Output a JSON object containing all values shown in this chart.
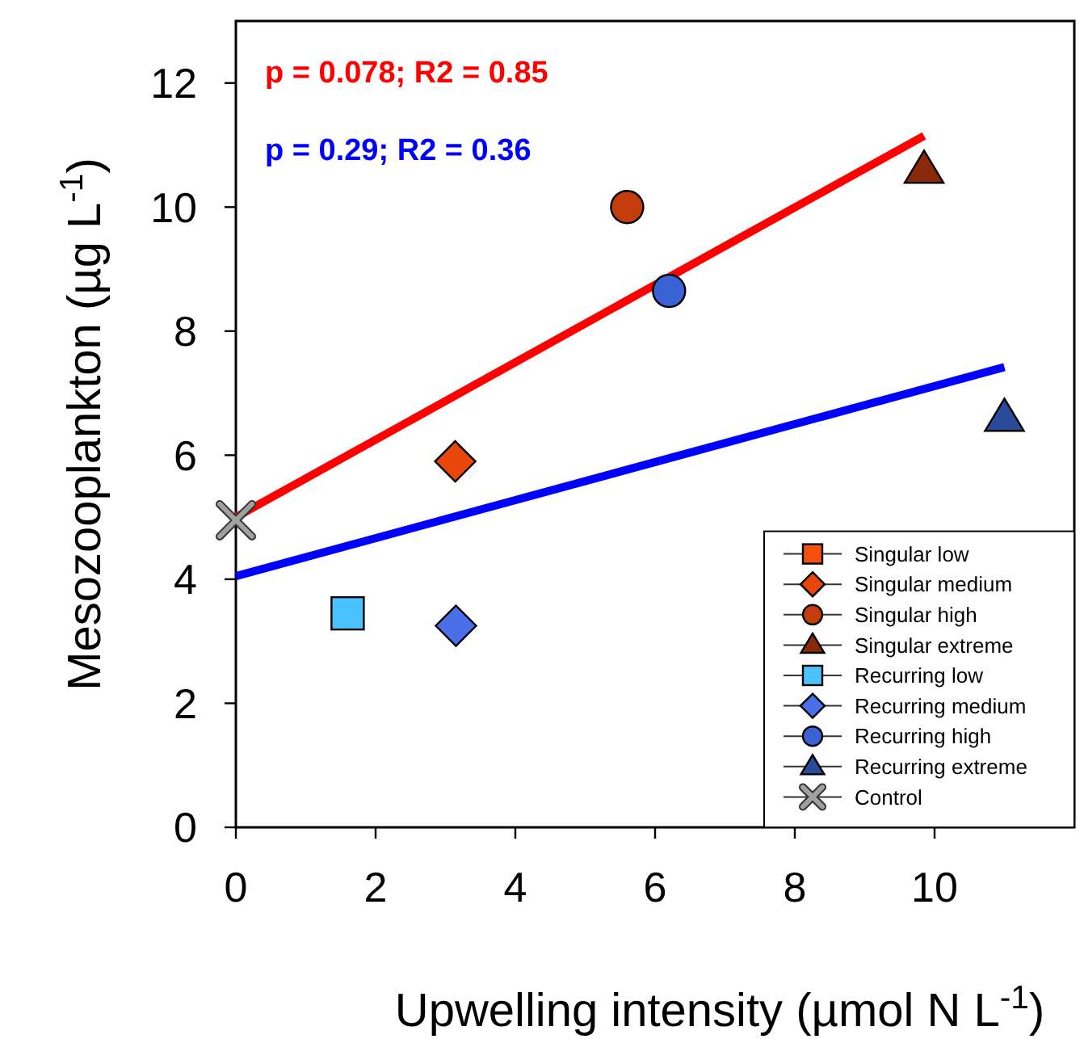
{
  "chart_data": {
    "type": "scatter",
    "xlabel": "Upwelling intensity (µmol N L$^{-1}$)",
    "ylabel": "Mesozooplankton (µg L$^{-1}$)",
    "xlim": [
      0,
      12
    ],
    "xticks": [
      0,
      2,
      4,
      6,
      8,
      10
    ],
    "ylim": [
      0,
      13
    ],
    "yticks": [
      0,
      2,
      4,
      6,
      8,
      10,
      12
    ],
    "grid": false,
    "legend": "bottom right",
    "annotations": [
      "p = 0.078; R2 = 0.85",
      "p = 0.29; R2 = 0.36"
    ],
    "series": [
      {
        "name": "Singular low",
        "color": "#f5500f",
        "marker": "square",
        "x": [
          null
        ],
        "values": [
          null
        ]
      },
      {
        "name": "Singular medium",
        "color": "#e8460a",
        "marker": "diamond",
        "x": [
          3.14
        ],
        "values": [
          5.9
        ]
      },
      {
        "name": "Singular high",
        "color": "#c43c0c",
        "marker": "circle",
        "x": [
          5.6
        ],
        "values": [
          10.0
        ]
      },
      {
        "name": "Singular extreme",
        "color": "#8b2a0a",
        "marker": "triangle",
        "x": [
          9.85
        ],
        "values": [
          10.6
        ]
      },
      {
        "name": "Recurring low",
        "color": "#4cc3ff",
        "marker": "square",
        "x": [
          1.6
        ],
        "values": [
          3.45
        ]
      },
      {
        "name": "Recurring medium",
        "color": "#4a6fe8",
        "marker": "diamond",
        "x": [
          3.15
        ],
        "values": [
          3.25
        ]
      },
      {
        "name": "Recurring high",
        "color": "#3b62d4",
        "marker": "circle",
        "x": [
          6.2
        ],
        "values": [
          8.65
        ]
      },
      {
        "name": "Recurring extreme",
        "color": "#2a4a9a",
        "marker": "triangle",
        "x": [
          11.0
        ],
        "values": [
          6.6
        ]
      },
      {
        "name": "Control",
        "color": "#a0a0a0",
        "marker": "cross",
        "x": [
          0
        ],
        "values": [
          4.95
        ]
      },
      {
        "type": "line",
        "color": "#ff0000",
        "x": [
          0,
          9.85
        ],
        "values": [
          5.0,
          11.15
        ]
      },
      {
        "type": "line",
        "color": "#0000ff",
        "x": [
          0,
          11.0
        ],
        "values": [
          4.05,
          7.42
        ]
      }
    ]
  }
}
